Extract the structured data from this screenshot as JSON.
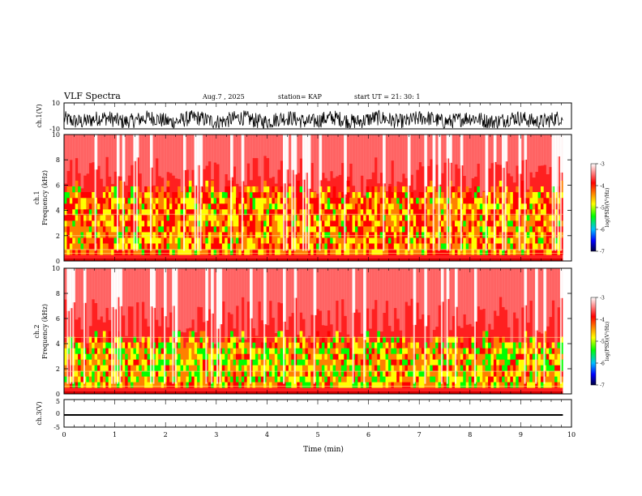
{
  "chart_data": [
    {
      "type": "line",
      "panel": "ch1-waveform",
      "title": "VLF Spectra",
      "date": "Aug.7 , 2025",
      "station": "station= KAP",
      "start_ut": "start UT =  21: 30: 1",
      "ylabel": "ch.1(V)",
      "ylim": [
        -10,
        10
      ],
      "yticks": [
        "10",
        "-10"
      ],
      "xlim": [
        0,
        10
      ],
      "series": [
        {
          "name": "ch.1",
          "mean": -3,
          "amplitude": 6
        }
      ]
    },
    {
      "type": "heatmap",
      "panel": "ch1-spectrogram",
      "ylabel_top": "ch.1",
      "ylabel": "Frequency (kHz)",
      "ylim": [
        0,
        10
      ],
      "yticks": [
        "0",
        "2",
        "4",
        "6",
        "8",
        "10"
      ],
      "xlim": [
        0,
        9.83
      ],
      "colorbar": {
        "label": "log(PSD)(V²/Hz)",
        "range": [
          -7,
          -3
        ],
        "ticks": [
          "-3",
          "-4",
          "-5",
          "-6",
          "-7"
        ]
      },
      "activity_bands": [
        {
          "from_khz": 0.5,
          "to_khz": 4.8,
          "log_psd": -4.8
        }
      ],
      "lines_khz": [
        0.6,
        0.9,
        2.0,
        3.7
      ]
    },
    {
      "type": "heatmap",
      "panel": "ch2-spectrogram",
      "ylabel_top": "ch.2",
      "ylabel": "Frequency (kHz)",
      "ylim": [
        0,
        10
      ],
      "yticks": [
        "0",
        "2",
        "4",
        "6",
        "8",
        "10"
      ],
      "xlim": [
        0,
        9.83
      ],
      "colorbar": {
        "label": "log(PSD)(V²/Hz)",
        "range": [
          -7,
          -3
        ],
        "ticks": [
          "-3",
          "-4",
          "-5",
          "-6",
          "-7"
        ]
      },
      "activity_bands": [
        {
          "from_khz": 0.5,
          "to_khz": 3.5,
          "log_psd": -5.0
        }
      ],
      "lines_khz": [
        0.6,
        1.8,
        4.5
      ]
    },
    {
      "type": "line",
      "panel": "ch3-waveform",
      "ylabel": "ch.3(V)",
      "ylim": [
        -5,
        5
      ],
      "yticks": [
        "5",
        "0",
        "-5"
      ],
      "xlim": [
        0,
        10
      ],
      "xlabel": "Time (min)",
      "xticks": [
        "0",
        "1",
        "2",
        "3",
        "4",
        "5",
        "6",
        "7",
        "8",
        "9",
        "10"
      ],
      "series": [
        {
          "name": "ch.3",
          "mean": -0.6,
          "amplitude": 0.3
        }
      ]
    }
  ],
  "colors": {
    "background": "#ffffff",
    "axis": "#000000",
    "psd_high": "#ff0000",
    "psd_mid": "#ffff00",
    "psd_low": "#00ff00"
  }
}
